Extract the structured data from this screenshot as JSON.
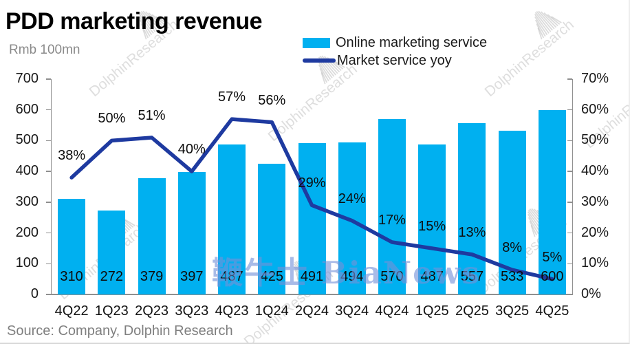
{
  "title": "PDD marketing revenue",
  "unit_label": "Rmb 100mn",
  "source": "Source: Company, Dolphin Research",
  "watermarks": {
    "brand": "DolphinResearch",
    "bianews": "鞭牛士 BiaNews"
  },
  "colors": {
    "bar": "#00B0F0",
    "line": "#1E3AA0",
    "axis": "#8F8F8F",
    "title_text": "#000000",
    "muted_text": "#8A8A8A"
  },
  "chart_data": {
    "type": "bar",
    "subtype": "combo-bar-line",
    "title": "PDD marketing revenue",
    "categories": [
      "4Q22",
      "1Q23",
      "2Q23",
      "3Q23",
      "4Q23",
      "1Q24",
      "2Q24",
      "3Q24",
      "4Q24",
      "1Q25",
      "2Q25",
      "3Q25",
      "4Q25"
    ],
    "series": [
      {
        "name": "Online marketing service",
        "type": "bar",
        "axis": "left",
        "color": "#00B0F0",
        "values": [
          310,
          272,
          379,
          397,
          487,
          425,
          491,
          494,
          570,
          487,
          557,
          533,
          600
        ]
      },
      {
        "name": "Market service yoy",
        "type": "line",
        "axis": "right",
        "color": "#1E3AA0",
        "unit": "%",
        "values": [
          38,
          50,
          51,
          40,
          57,
          56,
          29,
          24,
          17,
          15,
          13,
          8,
          5
        ]
      }
    ],
    "left_axis": {
      "label": "Rmb 100mn",
      "min": 0,
      "max": 700,
      "step": 100
    },
    "right_axis": {
      "min": 0,
      "max": 70,
      "step": 10,
      "format": "percent"
    },
    "grid": false,
    "legend_position": "top-right"
  }
}
